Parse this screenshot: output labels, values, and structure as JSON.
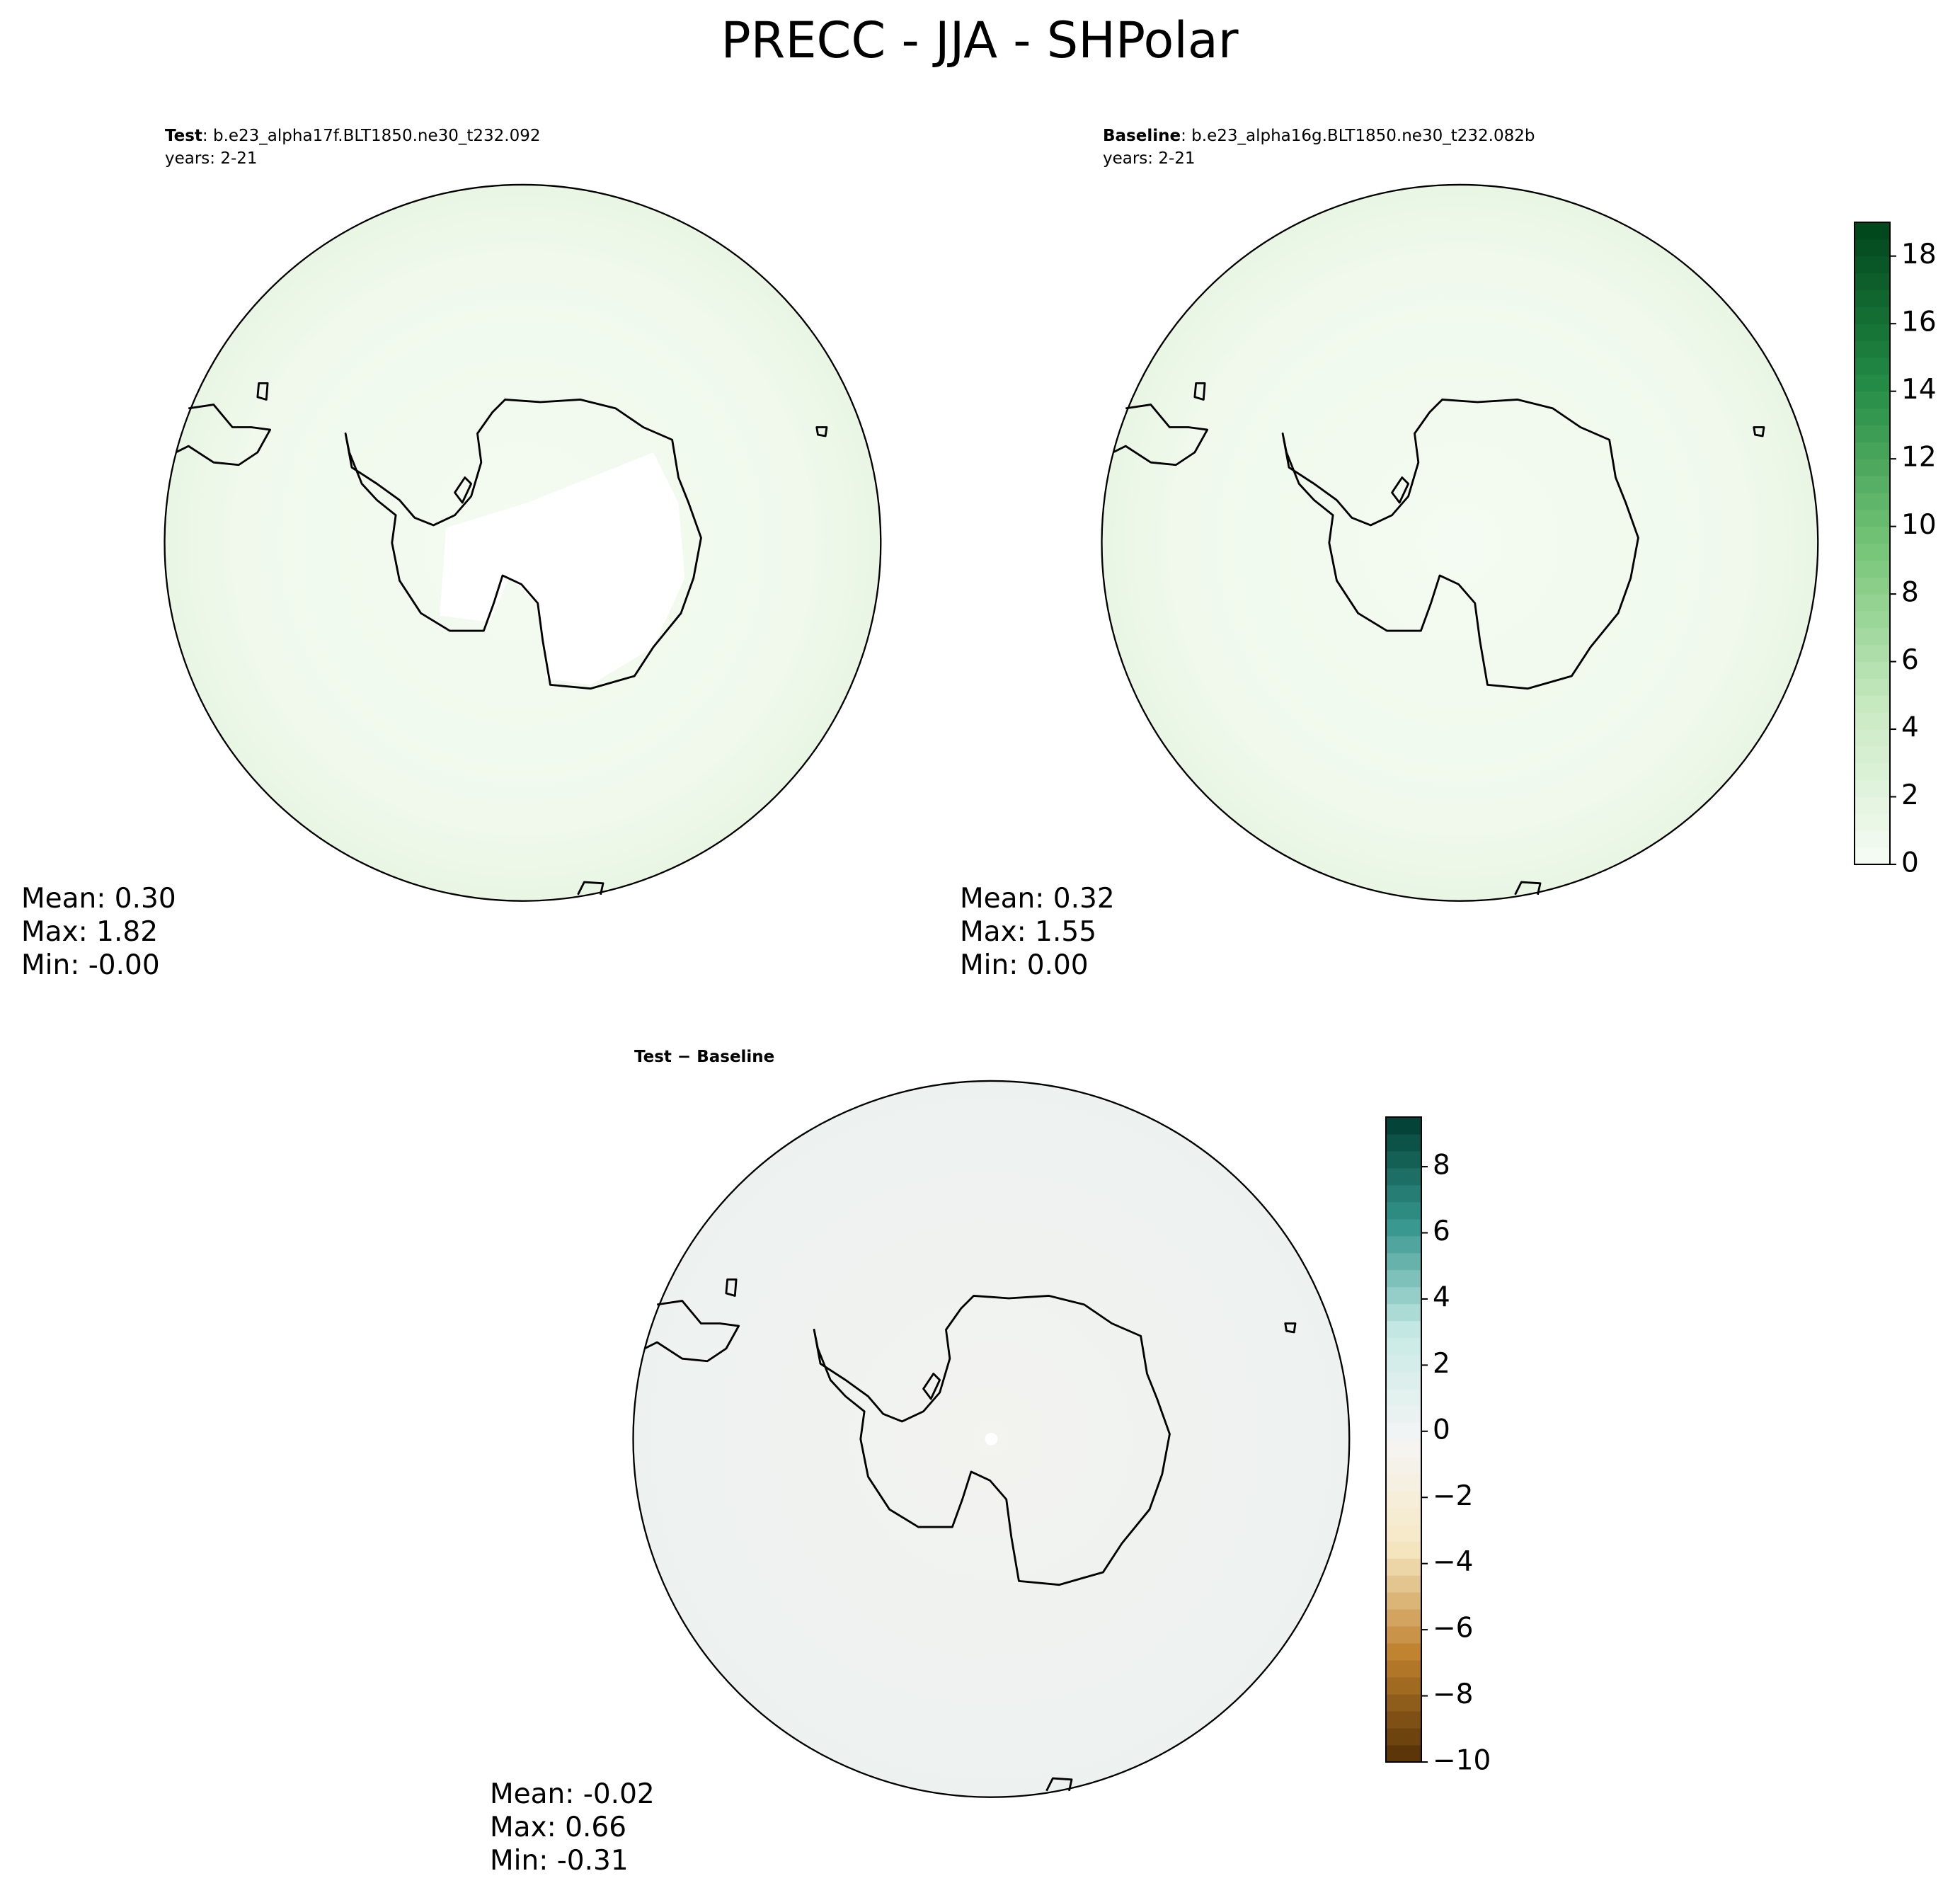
{
  "title": "PRECC - JJA - SHPolar",
  "panels": [
    {
      "label": "Test",
      "case": ": b.e23_alpha17f.BLT1850.ne30_t232.092",
      "years": "years: 2-21",
      "stats": [
        "Mean:  0.30",
        "Max:  1.82",
        "Min: -0.00"
      ]
    },
    {
      "label": "Baseline",
      "case": ": b.e23_alpha16g.BLT1850.ne30_t232.082b",
      "years": "years: 2-21",
      "stats": [
        "Mean:  0.32",
        "Max:  1.55",
        "Min:  0.00"
      ]
    },
    {
      "label": "Test − Baseline",
      "stats": [
        "Mean: -0.02",
        "Max:  0.66",
        "Min: -0.31"
      ]
    }
  ],
  "colorbars": [
    {
      "lim": [
        0,
        19
      ],
      "ticks": [
        0,
        2,
        4,
        6,
        8,
        10,
        12,
        14,
        16,
        18
      ],
      "colors": [
        "#f7fcf5",
        "#c7e9c0",
        "#74c476",
        "#238b45",
        "#00441b"
      ]
    },
    {
      "lim": [
        -10,
        9.5
      ],
      "ticks": [
        {
          "value": -10,
          "label": "−10"
        },
        {
          "value": -8,
          "label": "−8"
        },
        {
          "value": -6,
          "label": "−6"
        },
        {
          "value": -4,
          "label": "−4"
        },
        {
          "value": -2,
          "label": "−2"
        },
        0,
        2,
        4,
        6,
        8
      ],
      "colors": [
        "#543005",
        "#bf812d",
        "#f6e8c3",
        "#f5f5f5",
        "#c7eae5",
        "#35978f",
        "#003c30"
      ]
    }
  ]
}
